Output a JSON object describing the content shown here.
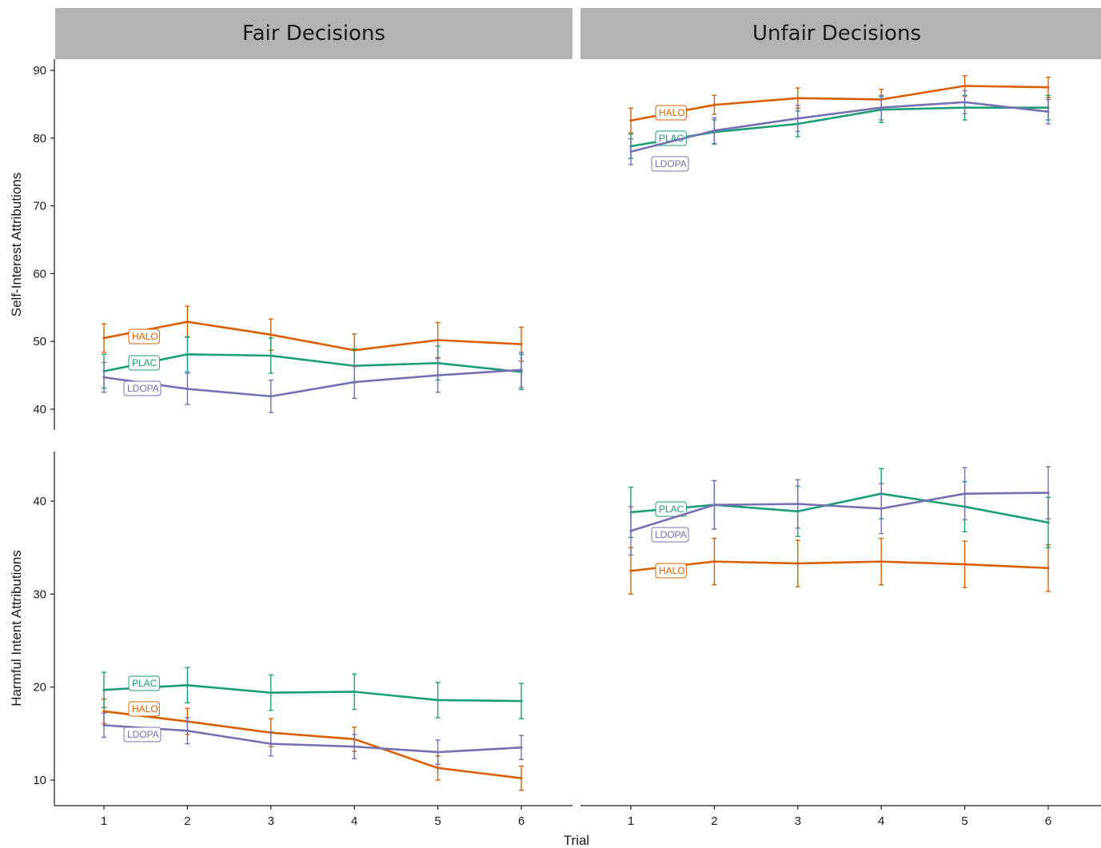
{
  "chart_data": {
    "type": "line",
    "facet_columns": [
      "Fair Decisions",
      "Unfair Decisions"
    ],
    "row_ylabels": [
      "Self-Interest Attributions",
      "Harmful Intent Attributions"
    ],
    "xlabel": "Trial",
    "x": [
      1,
      2,
      3,
      4,
      5,
      6
    ],
    "series_colors": {
      "HALO": "#d95f02",
      "PLAC": "#1b9e77",
      "LDOPA": "#7570b3"
    },
    "strip_color": "#b3b3b3",
    "grid": false,
    "legend": "direct labels at trial 1",
    "panels": [
      {
        "row": 0,
        "col": 0,
        "ylim": [
          38,
          91
        ],
        "yticks": [
          40,
          50,
          60,
          70,
          80,
          90
        ],
        "series": [
          {
            "name": "HALO",
            "values": [
              50.5,
              52.9,
              51.0,
              48.7,
              50.2,
              49.6
            ],
            "errors": [
              2.1,
              2.3,
              2.3,
              2.4,
              2.6,
              2.5
            ]
          },
          {
            "name": "PLAC",
            "values": [
              45.6,
              48.1,
              47.9,
              46.4,
              46.8,
              45.5
            ],
            "errors": [
              2.5,
              2.6,
              2.6,
              2.5,
              2.5,
              2.6
            ]
          },
          {
            "name": "LDOPA",
            "values": [
              44.7,
              43.0,
              41.9,
              44.0,
              45.0,
              45.8
            ],
            "errors": [
              2.2,
              2.3,
              2.4,
              2.4,
              2.5,
              2.6
            ]
          }
        ]
      },
      {
        "row": 0,
        "col": 1,
        "ylim": [
          38,
          91
        ],
        "yticks": [
          40,
          50,
          60,
          70,
          80,
          90
        ],
        "series": [
          {
            "name": "HALO",
            "values": [
              82.6,
              84.9,
              85.9,
              85.7,
              87.7,
              87.5
            ],
            "errors": [
              1.8,
              1.4,
              1.5,
              1.5,
              1.5,
              1.5
            ]
          },
          {
            "name": "PLAC",
            "values": [
              78.8,
              80.9,
              82.1,
              84.2,
              84.5,
              84.5
            ],
            "errors": [
              1.8,
              1.8,
              1.9,
              1.9,
              1.8,
              1.8
            ]
          },
          {
            "name": "LDOPA",
            "values": [
              78.0,
              81.1,
              82.9,
              84.5,
              85.3,
              83.9
            ],
            "errors": [
              1.9,
              1.9,
              1.9,
              1.8,
              1.7,
              1.8
            ]
          }
        ]
      },
      {
        "row": 1,
        "col": 0,
        "ylim": [
          7,
          45
        ],
        "yticks": [
          10,
          20,
          30,
          40
        ],
        "series": [
          {
            "name": "HALO",
            "values": [
              17.4,
              16.3,
              15.1,
              14.4,
              11.3,
              10.2
            ],
            "errors": [
              1.3,
              1.4,
              1.5,
              1.3,
              1.3,
              1.3
            ]
          },
          {
            "name": "PLAC",
            "values": [
              19.7,
              20.2,
              19.4,
              19.5,
              18.6,
              18.5
            ],
            "errors": [
              1.9,
              1.9,
              1.9,
              1.9,
              1.9,
              1.9
            ]
          },
          {
            "name": "LDOPA",
            "values": [
              15.9,
              15.3,
              13.9,
              13.6,
              13.0,
              13.5
            ],
            "errors": [
              1.3,
              1.4,
              1.3,
              1.3,
              1.3,
              1.3
            ]
          }
        ]
      },
      {
        "row": 1,
        "col": 1,
        "ylim": [
          7,
          45
        ],
        "yticks": [
          10,
          20,
          30,
          40
        ],
        "series": [
          {
            "name": "HALO",
            "values": [
              32.5,
              33.5,
              33.3,
              33.5,
              33.2,
              32.8
            ],
            "errors": [
              2.5,
              2.5,
              2.5,
              2.5,
              2.5,
              2.5
            ]
          },
          {
            "name": "PLAC",
            "values": [
              38.8,
              39.6,
              38.9,
              40.8,
              39.4,
              37.7
            ],
            "errors": [
              2.7,
              2.6,
              2.7,
              2.7,
              2.7,
              2.7
            ]
          },
          {
            "name": "LDOPA",
            "values": [
              36.8,
              39.6,
              39.7,
              39.2,
              40.8,
              40.9
            ],
            "errors": [
              2.6,
              2.6,
              2.6,
              2.7,
              2.8,
              2.8
            ]
          }
        ]
      }
    ]
  }
}
